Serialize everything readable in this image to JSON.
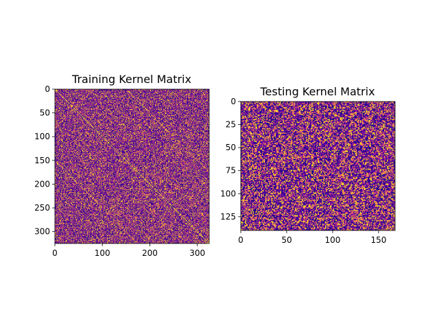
{
  "chart_data": [
    {
      "type": "heatmap",
      "title": "Training Kernel Matrix",
      "rows": 325,
      "cols": 325,
      "xlim": [
        0,
        325
      ],
      "ylim": [
        325,
        0
      ],
      "xticks": [
        0,
        100,
        200,
        300
      ],
      "yticks": [
        0,
        50,
        100,
        150,
        200,
        250,
        300
      ],
      "colormap": "plasma",
      "value_range": [
        0,
        1
      ],
      "structure": "symmetric with bright main diagonal and off-diagonal streaks"
    },
    {
      "type": "heatmap",
      "title": "Testing Kernel Matrix",
      "rows": 140,
      "cols": 168,
      "xlim": [
        0,
        168
      ],
      "ylim": [
        140,
        0
      ],
      "xticks": [
        0,
        50,
        100,
        150
      ],
      "yticks": [
        0,
        25,
        50,
        75,
        100,
        125
      ],
      "colormap": "plasma",
      "value_range": [
        0,
        1
      ],
      "structure": "dense random noise, no diagonal"
    }
  ],
  "colors": {
    "low": "#0d0887",
    "mid_low": "#7e03a8",
    "mid": "#cc4778",
    "mid_high": "#f89540",
    "high": "#f0f921"
  }
}
